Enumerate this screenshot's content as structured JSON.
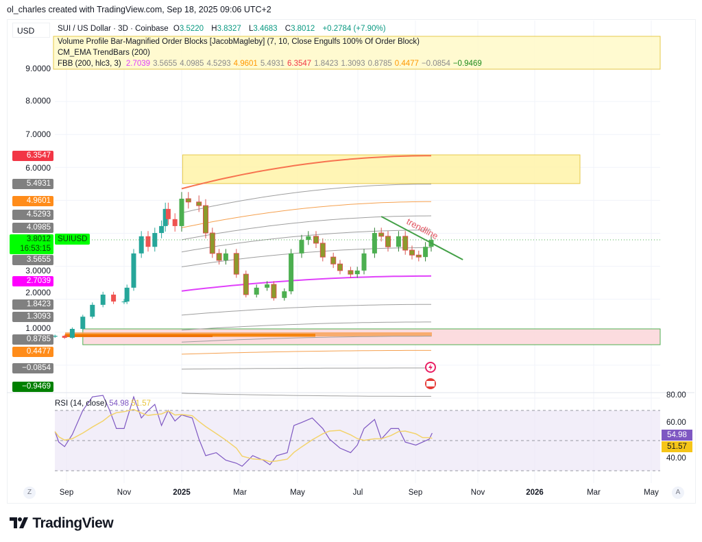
{
  "header": {
    "author_line": "ol_charles created with TradingView.com, Sep 18, 2025 09:06 UTC+2",
    "currency": "USD",
    "symbol": "SUI / US Dollar · 3D · Coinbase",
    "open_label": "O",
    "open": "3.5220",
    "high_label": "H",
    "high": "3.8327",
    "low_label": "L",
    "low": "3.4683",
    "close_label": "C",
    "close": "3.8012",
    "change": "+0.2784 (+7.90%)"
  },
  "indicators": {
    "volume_profile": "Volume Profile Bar-Magnified Order Blocks [JacobMagleby] (7, 10, Close Engulfs 100% Of Order Block)",
    "cm_ema": "CM_EMA TrendBars (200)",
    "fbb_label": "FBB (200, hlc3, 3)",
    "fbb_values": [
      {
        "v": "2.7039",
        "color": "#e040fb"
      },
      {
        "v": "3.5655",
        "color": "#8a8a8a"
      },
      {
        "v": "4.0985",
        "color": "#8a8a8a"
      },
      {
        "v": "4.5293",
        "color": "#8a8a8a"
      },
      {
        "v": "4.9601",
        "color": "#ff9800"
      },
      {
        "v": "5.4931",
        "color": "#8a8a8a"
      },
      {
        "v": "6.3547",
        "color": "#f23645"
      },
      {
        "v": "1.8423",
        "color": "#8a8a8a"
      },
      {
        "v": "1.3093",
        "color": "#8a8a8a"
      },
      {
        "v": "0.8785",
        "color": "#8a8a8a"
      },
      {
        "v": "0.4477",
        "color": "#ff9800"
      },
      {
        "v": "−0.0854",
        "color": "#8a8a8a"
      },
      {
        "v": "−0.9469",
        "color": "#1b8a1b"
      }
    ]
  },
  "price_axis": {
    "ticks": [
      "9.0000",
      "8.0000",
      "7.0000",
      "6.0000",
      "3.0000",
      "2.0000",
      "1.0000"
    ],
    "badges": [
      {
        "v": "6.3547",
        "color": "#f23645"
      },
      {
        "v": "5.4931",
        "color": "#808080"
      },
      {
        "v": "4.9601",
        "color": "#ff8c1a"
      },
      {
        "v": "4.5293",
        "color": "#808080"
      },
      {
        "v": "4.0985",
        "color": "#808080"
      },
      {
        "v": "3.5655",
        "color": "#808080"
      },
      {
        "v": "2.7039",
        "color": "#ff00ff"
      },
      {
        "v": "1.8423",
        "color": "#808080"
      },
      {
        "v": "1.3093",
        "color": "#808080"
      },
      {
        "v": "0.8785",
        "color": "#808080"
      },
      {
        "v": "0.4477",
        "color": "#ff8c1a"
      },
      {
        "v": "−0.0854",
        "color": "#808080"
      },
      {
        "v": "−0.9469",
        "color": "#008000"
      }
    ],
    "last_price": "3.8012",
    "countdown": "16:53:15",
    "symbol_tag": "SUIUSD"
  },
  "drawings": {
    "trendline_label": "trendline"
  },
  "rsi": {
    "label": "RSI (14, close)",
    "value": "54.98",
    "ma_value": "51.57",
    "ticks": [
      "80.00",
      "60.00",
      "40.00"
    ]
  },
  "time_axis": {
    "labels": [
      "Sep",
      "Nov",
      "2025",
      "Mar",
      "May",
      "Jul",
      "Sep",
      "Nov",
      "2026",
      "Mar",
      "May"
    ],
    "bold": [
      2,
      8
    ]
  },
  "controls": {
    "zoom_button": "Z",
    "auto_button": "A"
  },
  "logo": "TradingView",
  "colors": {
    "up": "#26a69a",
    "down": "#ef5350",
    "trend_up": "#4caf50",
    "trend_down": "#8d9a2c",
    "basis": "#e040fb",
    "upper_top": "#f7734f",
    "rsi": "#7e57c2",
    "rsi_ma": "#f3d36b"
  },
  "chart_data": {
    "type": "candlestick",
    "title": "SUI / US Dollar · 3D · Coinbase",
    "ylim": [
      -1.3,
      9.6
    ],
    "y_scale": "linear",
    "grid": true,
    "closes": [
      [
        "2024-08-20",
        0.89
      ],
      [
        "2024-08-30",
        0.83
      ],
      [
        "2024-09-07",
        1.1
      ],
      [
        "2024-09-18",
        1.47
      ],
      [
        "2024-09-28",
        1.83
      ],
      [
        "2024-10-09",
        2.14
      ],
      [
        "2024-10-20",
        1.93
      ],
      [
        "2024-10-31",
        1.93
      ],
      [
        "2024-11-03",
        2.35
      ],
      [
        "2024-11-10",
        3.39
      ],
      [
        "2024-11-18",
        3.91
      ],
      [
        "2024-11-25",
        3.59
      ],
      [
        "2024-12-02",
        4.01
      ],
      [
        "2024-12-09",
        4.22
      ],
      [
        "2024-12-13",
        4.74
      ],
      [
        "2024-12-16",
        4.43
      ],
      [
        "2024-12-23",
        4.22
      ],
      [
        "2024-12-30",
        5.05
      ],
      [
        "2025-01-06",
        4.95
      ],
      [
        "2025-01-17",
        4.84
      ],
      [
        "2025-01-24",
        4.01
      ],
      [
        "2025-01-31",
        3.39
      ],
      [
        "2025-02-07",
        3.18
      ],
      [
        "2025-02-14",
        3.39
      ],
      [
        "2025-02-25",
        2.76
      ],
      [
        "2025-03-07",
        2.14
      ],
      [
        "2025-03-18",
        2.35
      ],
      [
        "2025-03-29",
        2.45
      ],
      [
        "2025-04-05",
        2.04
      ],
      [
        "2025-04-16",
        2.24
      ],
      [
        "2025-04-23",
        3.39
      ],
      [
        "2025-05-04",
        3.8
      ],
      [
        "2025-05-11",
        3.91
      ],
      [
        "2025-05-19",
        3.7
      ],
      [
        "2025-05-26",
        3.28
      ],
      [
        "2025-06-06",
        3.07
      ],
      [
        "2025-06-13",
        2.87
      ],
      [
        "2025-06-24",
        2.76
      ],
      [
        "2025-07-01",
        2.87
      ],
      [
        "2025-07-08",
        3.39
      ],
      [
        "2025-07-19",
        4.01
      ],
      [
        "2025-07-26",
        3.91
      ],
      [
        "2025-08-02",
        3.59
      ],
      [
        "2025-08-13",
        3.91
      ],
      [
        "2025-08-20",
        3.49
      ],
      [
        "2025-08-27",
        3.34
      ],
      [
        "2025-09-03",
        3.28
      ],
      [
        "2025-09-10",
        3.59
      ],
      [
        "2025-09-16",
        3.8
      ]
    ],
    "fbb": {
      "start_date": "2024-12-30",
      "end_date": "2025-09-16",
      "basis": 2.7039,
      "upper": [
        3.5655,
        4.0985,
        4.5293,
        4.9601,
        5.4931,
        6.3547
      ],
      "lower": [
        1.8423,
        1.3093,
        0.8785,
        0.4477,
        -0.0854,
        -0.9469
      ]
    },
    "zones": [
      {
        "from": "2024-12-31",
        "to": "2026-03-05",
        "top": 6.38,
        "bottom": 5.51,
        "color": "#fff3a8"
      },
      {
        "from": "2024-09-18",
        "to": "2026-07-30",
        "top": 1.1,
        "bottom": 0.62,
        "color": "#fbd6d9"
      }
    ],
    "trendline": {
      "from": [
        "2025-07-26",
        4.51
      ],
      "to": [
        "2025-10-19",
        3.2
      ]
    },
    "rsi_series": [
      [
        "2024-08-20",
        56
      ],
      [
        "2024-08-24",
        49
      ],
      [
        "2024-08-30",
        46
      ],
      [
        "2024-09-07",
        54
      ],
      [
        "2024-09-18",
        70
      ],
      [
        "2024-09-28",
        79
      ],
      [
        "2024-10-09",
        80
      ],
      [
        "2024-10-16",
        70
      ],
      [
        "2024-10-23",
        58
      ],
      [
        "2024-10-31",
        58
      ],
      [
        "2024-11-10",
        79
      ],
      [
        "2024-11-18",
        65
      ],
      [
        "2024-11-25",
        70
      ],
      [
        "2024-12-02",
        74
      ],
      [
        "2024-12-09",
        60
      ],
      [
        "2024-12-16",
        70
      ],
      [
        "2024-12-23",
        63
      ],
      [
        "2024-12-30",
        67
      ],
      [
        "2025-01-10",
        65
      ],
      [
        "2025-01-17",
        51
      ],
      [
        "2025-01-24",
        40
      ],
      [
        "2025-02-04",
        42
      ],
      [
        "2025-02-14",
        37
      ],
      [
        "2025-02-25",
        35
      ],
      [
        "2025-03-03",
        33
      ],
      [
        "2025-03-14",
        40
      ],
      [
        "2025-03-25",
        37
      ],
      [
        "2025-04-01",
        34
      ],
      [
        "2025-04-08",
        40
      ],
      [
        "2025-04-19",
        42
      ],
      [
        "2025-04-26",
        60
      ],
      [
        "2025-05-04",
        62
      ],
      [
        "2025-05-15",
        65
      ],
      [
        "2025-05-26",
        58
      ],
      [
        "2025-06-02",
        51
      ],
      [
        "2025-06-13",
        45
      ],
      [
        "2025-06-24",
        42
      ],
      [
        "2025-07-01",
        47
      ],
      [
        "2025-07-08",
        58
      ],
      [
        "2025-07-19",
        64
      ],
      [
        "2025-07-26",
        51
      ],
      [
        "2025-08-05",
        58
      ],
      [
        "2025-08-13",
        58
      ],
      [
        "2025-08-20",
        49
      ],
      [
        "2025-08-31",
        47
      ],
      [
        "2025-09-07",
        49
      ],
      [
        "2025-09-14",
        51
      ],
      [
        "2025-09-17",
        55
      ]
    ],
    "rsi_ylim": [
      25,
      85
    ],
    "rsi_bands": [
      70,
      50,
      30
    ]
  }
}
